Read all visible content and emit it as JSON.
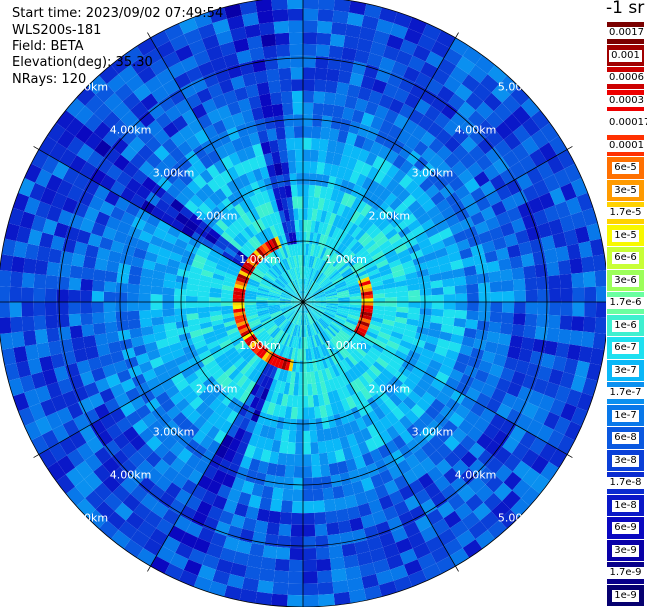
{
  "header": {
    "start_time": "Start time: 2023/09/02 07:49:54",
    "instrument": "WLS200s-181",
    "field": "Field: BETA",
    "elevation": "Elevation(deg): 35.30",
    "nrays": "NRays: 120"
  },
  "colorbar": {
    "units_label": "-1 sr",
    "ticks": [
      "0.0017",
      "0.001",
      "0.0006",
      "0.0003",
      "0.00017",
      "0.0001",
      "6e-5",
      "3e-5",
      "1.7e-5",
      "1e-5",
      "6e-6",
      "3e-6",
      "1.7e-6",
      "1e-6",
      "6e-7",
      "3e-7",
      "1.7e-7",
      "1e-7",
      "6e-8",
      "3e-8",
      "1.7e-8",
      "1e-8",
      "6e-9",
      "3e-9",
      "1.7e-9",
      "1e-9"
    ],
    "colors": [
      "#7a0000",
      "#a00000",
      "#cc0000",
      "#ee0000",
      "#ffffff",
      "#ff3000",
      "#ff7000",
      "#ff9a00",
      "#ffd200",
      "#f8f800",
      "#c8ff36",
      "#9cff5a",
      "#6affa0",
      "#3ef0d0",
      "#1ee0f0",
      "#0ab8f8",
      "#0a90f0",
      "#0878ea",
      "#0a58e0",
      "#0a40d8",
      "#0a2cd0",
      "#0a18c8",
      "#0a08c0",
      "#0800a8",
      "#08008a",
      "#060070"
    ]
  },
  "chart_data": {
    "type": "heatmap",
    "projection": "polar (PPI)",
    "title": "",
    "range_rings": [
      1,
      2,
      3,
      4,
      5
    ],
    "range_unit": "km",
    "range_ring_labels": [
      "1.00km",
      "2.00km",
      "3.00km",
      "4.00km",
      "5.00km"
    ],
    "max_range_km": 5.0,
    "n_rays": 120,
    "n_spokes": 12,
    "grid": true,
    "field": "BETA",
    "elevation_deg": 35.3,
    "colorbar_position": "right",
    "features": {
      "near_range_ring": {
        "range_km": 1.0,
        "value": "1e-3 to 1.7e-3",
        "azimuth_deg_ranges": [
          [
            190,
            340
          ],
          [
            70,
            120
          ]
        ]
      },
      "blocked_sectors_deg": [
        [
          200,
          210
        ],
        [
          300,
          310
        ],
        [
          345,
          355
        ]
      ]
    }
  }
}
